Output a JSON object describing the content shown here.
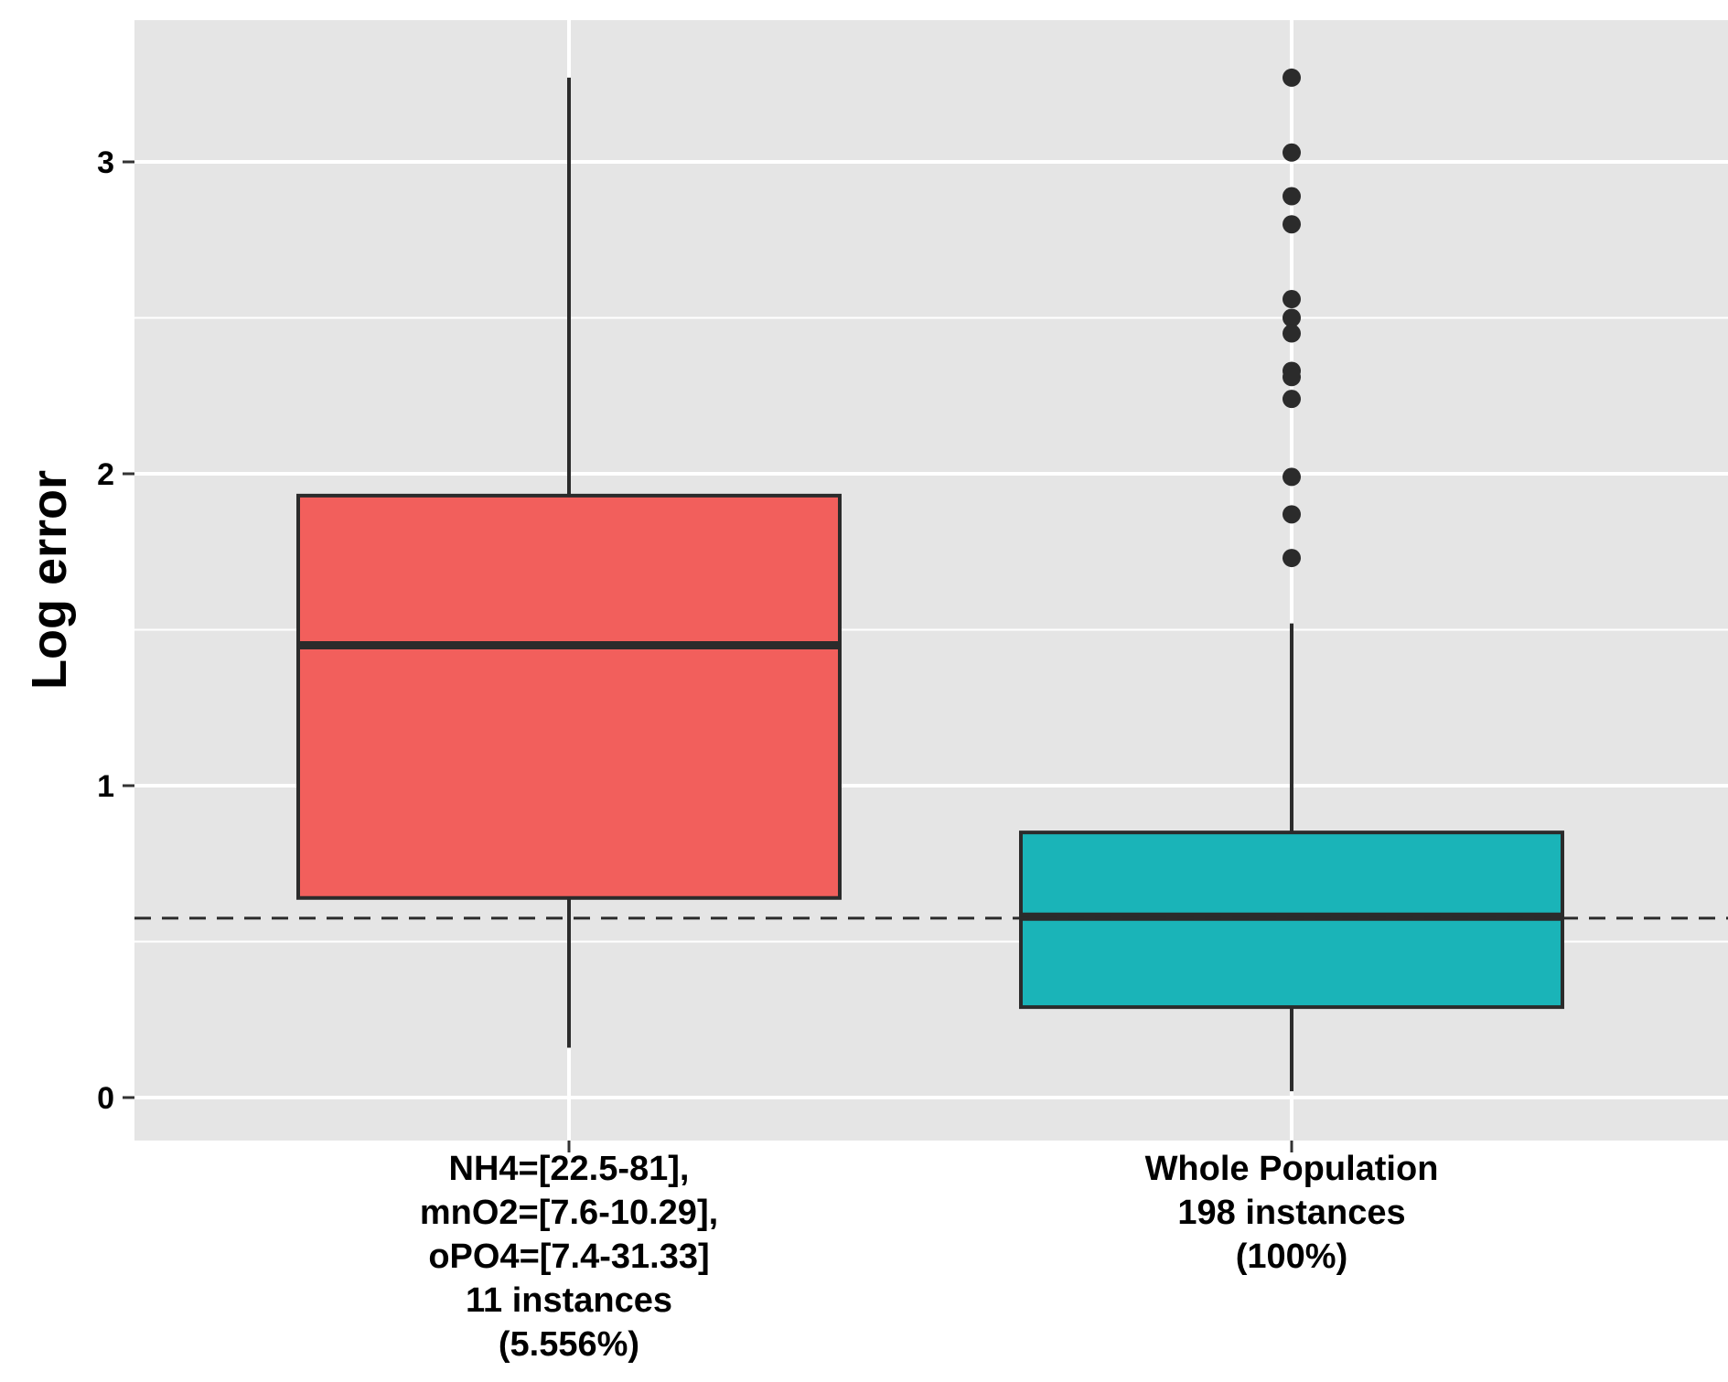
{
  "chart_data": {
    "type": "boxplot",
    "ylabel": "Log error",
    "xlabel": "",
    "ylim": [
      -0.14,
      3.45
    ],
    "yticks": [
      "0",
      "1",
      "2",
      "3"
    ],
    "grid": true,
    "legend": "none",
    "reference_line": {
      "y": 0.575,
      "style": "dashed"
    },
    "colors": {
      "panel": "#e5e5e5",
      "grid": "#ffffff",
      "outline": "#2b2b2b"
    },
    "categories": [
      {
        "label_lines": [
          "NH4=[22.5-81],",
          "mnO2=[7.6-10.29],",
          "oPO4=[7.4-31.33]",
          "11 instances",
          "(5.556%)"
        ],
        "color": "#f25f5c",
        "whisker_low": 0.16,
        "q1": 0.64,
        "median": 1.45,
        "q3": 1.93,
        "whisker_high": 3.27,
        "outliers": []
      },
      {
        "label_lines": [
          "Whole Population",
          "198 instances",
          "(100%)"
        ],
        "color": "#1ab4b8",
        "whisker_low": 0.02,
        "q1": 0.29,
        "median": 0.58,
        "q3": 0.85,
        "whisker_high": 1.52,
        "outliers": [
          3.27,
          3.03,
          2.89,
          2.8,
          2.56,
          2.5,
          2.45,
          2.33,
          2.31,
          2.24,
          1.99,
          1.87,
          1.73
        ]
      }
    ]
  }
}
